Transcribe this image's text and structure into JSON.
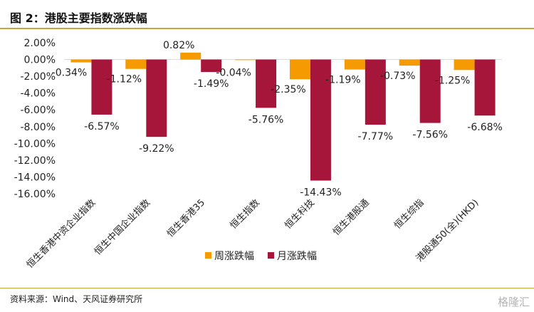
{
  "header": {
    "title": "图 2：港股主要指数涨跌幅"
  },
  "footer": {
    "source": "资料来源：Wind、天风证券研究所",
    "watermark": "格隆汇"
  },
  "colors": {
    "weekly": "#f59a00",
    "monthly": "#a6163a",
    "rule": "#c8a23a"
  },
  "chart_data": {
    "type": "bar",
    "title": "",
    "xlabel": "",
    "ylabel": "",
    "ylim": [
      -16,
      2
    ],
    "yticks": [
      "2.00%",
      "0.00%",
      "-2.00%",
      "-4.00%",
      "-6.00%",
      "-8.00%",
      "-10.00%",
      "-12.00%",
      "-14.00%",
      "-16.00%"
    ],
    "categories": [
      "恒生香港中资企业指数",
      "恒生中国企业指数",
      "恒生香港35",
      "恒生指数",
      "恒生科技",
      "恒生港股通",
      "恒生综指",
      "港股通50(全)(HKD)"
    ],
    "series": [
      {
        "name": "周涨跌幅",
        "values": [
          -0.34,
          -1.12,
          0.82,
          -0.04,
          -2.35,
          -1.19,
          -0.73,
          -1.25
        ],
        "labels": [
          "-0.34%",
          "-1.12%",
          "0.82%",
          "-0.04%",
          "-2.35%",
          "-1.19%",
          "-0.73%",
          "-1.25%"
        ]
      },
      {
        "name": "月涨跌幅",
        "values": [
          -6.57,
          -9.22,
          -1.49,
          -5.76,
          -14.43,
          -7.77,
          -7.56,
          -6.68
        ],
        "labels": [
          "-6.57%",
          "-9.22%",
          "-1.49%",
          "-5.76%",
          "-14.43%",
          "-7.77%",
          "-7.56%",
          "-6.68%"
        ]
      }
    ],
    "legend": {
      "position": "bottom"
    },
    "grid": false
  }
}
